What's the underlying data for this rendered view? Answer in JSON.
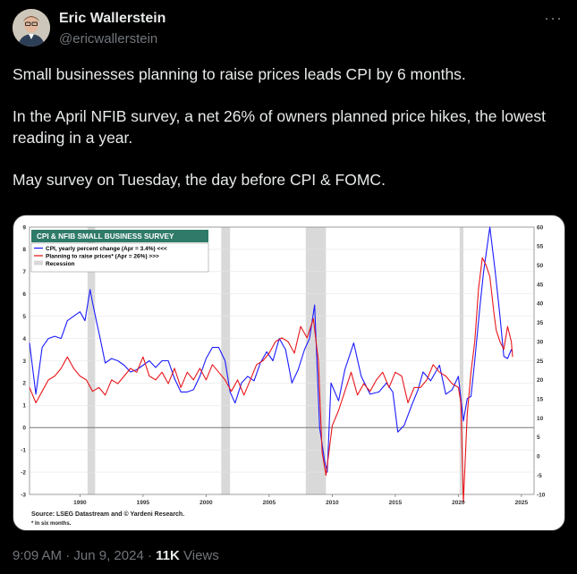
{
  "author": {
    "name": "Eric Wallerstein",
    "handle": "@ericwallerstein"
  },
  "tweet": {
    "paragraphs": [
      "Small businesses planning to raise prices leads CPI by 6 months.",
      "In the April NFIB survey, a net 26% of owners planned price hikes, the lowest reading in a year.",
      "May survey on Tuesday, the day before CPI & FOMC."
    ]
  },
  "footer": {
    "time": "9:09 AM",
    "date": "Jun 9, 2024",
    "views_count": "11K",
    "views_label": "Views"
  },
  "icons": {
    "more": "more-dots-icon"
  },
  "chart_data": {
    "type": "line",
    "title": "CPI & NFIB SMALL BUSINESS SURVEY",
    "source": "Source: LSEG Datastream and © Yardeni Research.",
    "footnote": "* In six months.",
    "legend": {
      "placement": "top-left",
      "entries": [
        "CPI, yearly percent change (Apr = 3.4%) <<<",
        "Planning to raise prices* (Apr = 26%) >>>",
        "Recession"
      ]
    },
    "x_ticks": [
      1990,
      1995,
      2000,
      2005,
      2010,
      2015,
      2020,
      2025
    ],
    "xlim": [
      1986.0,
      2026.0
    ],
    "y_left": {
      "ticks": [
        -3,
        -2,
        -1,
        0,
        1,
        2,
        3,
        4,
        5,
        6,
        7,
        8,
        9
      ],
      "ylim": [
        -3,
        9
      ]
    },
    "y_right": {
      "ticks": [
        -10,
        -5,
        0,
        5,
        10,
        15,
        20,
        25,
        30,
        35,
        40,
        45,
        50,
        55,
        60
      ],
      "ylim": [
        -10,
        60
      ]
    },
    "recessions": [
      [
        1990.6,
        1991.2
      ],
      [
        2001.2,
        2001.9
      ],
      [
        2007.9,
        2009.5
      ],
      [
        2020.1,
        2020.4
      ]
    ],
    "series": [
      {
        "name": "CPI, yearly percent change (Apr = 3.4%) <<<",
        "color": "#1a1aff",
        "axis": "left",
        "x": [
          1986.0,
          1986.5,
          1987.0,
          1987.5,
          1988.0,
          1988.5,
          1989.0,
          1989.5,
          1990.0,
          1990.4,
          1990.8,
          1991.0,
          1991.3,
          1991.6,
          1992.0,
          1992.5,
          1993.0,
          1993.5,
          1994.0,
          1994.5,
          1995.0,
          1995.5,
          1996.0,
          1996.5,
          1997.0,
          1997.5,
          1998.0,
          1998.5,
          1999.0,
          1999.5,
          2000.0,
          2000.5,
          2001.0,
          2001.5,
          2001.9,
          2002.3,
          2002.8,
          2003.3,
          2003.8,
          2004.3,
          2004.8,
          2005.3,
          2005.8,
          2006.3,
          2006.8,
          2007.3,
          2007.8,
          2008.2,
          2008.6,
          2009.0,
          2009.4,
          2009.6,
          2009.9,
          2010.5,
          2011.0,
          2011.7,
          2012.3,
          2013.0,
          2013.7,
          2014.3,
          2014.8,
          2015.2,
          2015.7,
          2016.3,
          2016.8,
          2017.2,
          2017.8,
          2018.5,
          2019.0,
          2019.5,
          2020.0,
          2020.4,
          2020.7,
          2021.0,
          2021.3,
          2021.7,
          2022.0,
          2022.5,
          2022.9,
          2023.3,
          2023.6,
          2023.9,
          2024.2,
          2024.3
        ],
        "y": [
          3.8,
          1.5,
          3.6,
          4.0,
          4.1,
          4.0,
          4.8,
          5.0,
          5.2,
          4.8,
          6.2,
          5.6,
          4.8,
          4.0,
          2.9,
          3.1,
          3.0,
          2.8,
          2.5,
          2.6,
          2.8,
          3.0,
          2.7,
          3.0,
          3.0,
          2.2,
          1.6,
          1.6,
          1.7,
          2.3,
          3.1,
          3.6,
          3.6,
          3.0,
          1.6,
          1.1,
          2.0,
          2.3,
          2.1,
          2.9,
          3.4,
          3.0,
          4.0,
          3.5,
          2.0,
          2.6,
          3.5,
          4.0,
          5.5,
          0.0,
          -1.5,
          -2.0,
          2.0,
          1.2,
          2.6,
          3.8,
          2.3,
          1.5,
          1.6,
          2.0,
          1.6,
          -0.2,
          0.1,
          1.0,
          1.7,
          2.5,
          2.1,
          2.8,
          1.5,
          1.7,
          2.3,
          0.3,
          1.3,
          1.4,
          3.0,
          5.4,
          7.0,
          9.0,
          7.1,
          5.0,
          3.2,
          3.1,
          3.5,
          3.4
        ]
      },
      {
        "name": "Planning to raise prices* (Apr = 26%) >>>",
        "color": "#e8161b",
        "axis": "right",
        "x": [
          1986.0,
          1986.5,
          1987.0,
          1987.5,
          1988.0,
          1988.5,
          1989.0,
          1989.5,
          1990.0,
          1990.5,
          1991.0,
          1991.5,
          1992.0,
          1992.5,
          1993.0,
          1993.5,
          1994.0,
          1994.5,
          1995.0,
          1995.5,
          1996.0,
          1996.5,
          1997.0,
          1997.5,
          1998.0,
          1998.5,
          1999.0,
          1999.5,
          2000.0,
          2000.5,
          2001.0,
          2001.5,
          2002.0,
          2002.5,
          2003.0,
          2003.5,
          2004.0,
          2004.5,
          2005.0,
          2005.5,
          2006.0,
          2006.5,
          2007.0,
          2007.5,
          2008.0,
          2008.5,
          2008.9,
          2009.2,
          2009.5,
          2010.0,
          2010.5,
          2011.0,
          2011.5,
          2012.0,
          2012.5,
          2013.0,
          2013.5,
          2014.0,
          2014.5,
          2015.0,
          2015.5,
          2016.0,
          2016.5,
          2017.0,
          2017.5,
          2018.0,
          2018.5,
          2019.0,
          2019.5,
          2020.0,
          2020.2,
          2020.4,
          2020.7,
          2021.0,
          2021.3,
          2021.6,
          2021.9,
          2022.2,
          2022.5,
          2022.8,
          2023.0,
          2023.3,
          2023.6,
          2023.9,
          2024.2,
          2024.3
        ],
        "y": [
          18,
          14,
          17,
          20,
          21,
          23,
          26,
          23,
          21,
          20,
          17,
          18,
          16,
          20,
          19,
          21,
          23,
          22,
          26,
          21,
          20,
          22,
          19,
          23,
          18,
          22,
          20,
          23,
          20,
          24,
          22,
          20,
          17,
          20,
          16,
          20,
          24,
          25,
          27,
          30,
          31,
          30,
          27,
          34,
          31,
          36,
          25,
          1,
          -5,
          8,
          12,
          17,
          22,
          16,
          19,
          17,
          20,
          22,
          18,
          22,
          21,
          14,
          18,
          18,
          20,
          24,
          22,
          21,
          19,
          18,
          14,
          -12,
          11,
          22,
          30,
          44,
          52,
          50,
          47,
          38,
          33,
          30,
          28,
          34,
          30,
          26
        ]
      }
    ]
  }
}
